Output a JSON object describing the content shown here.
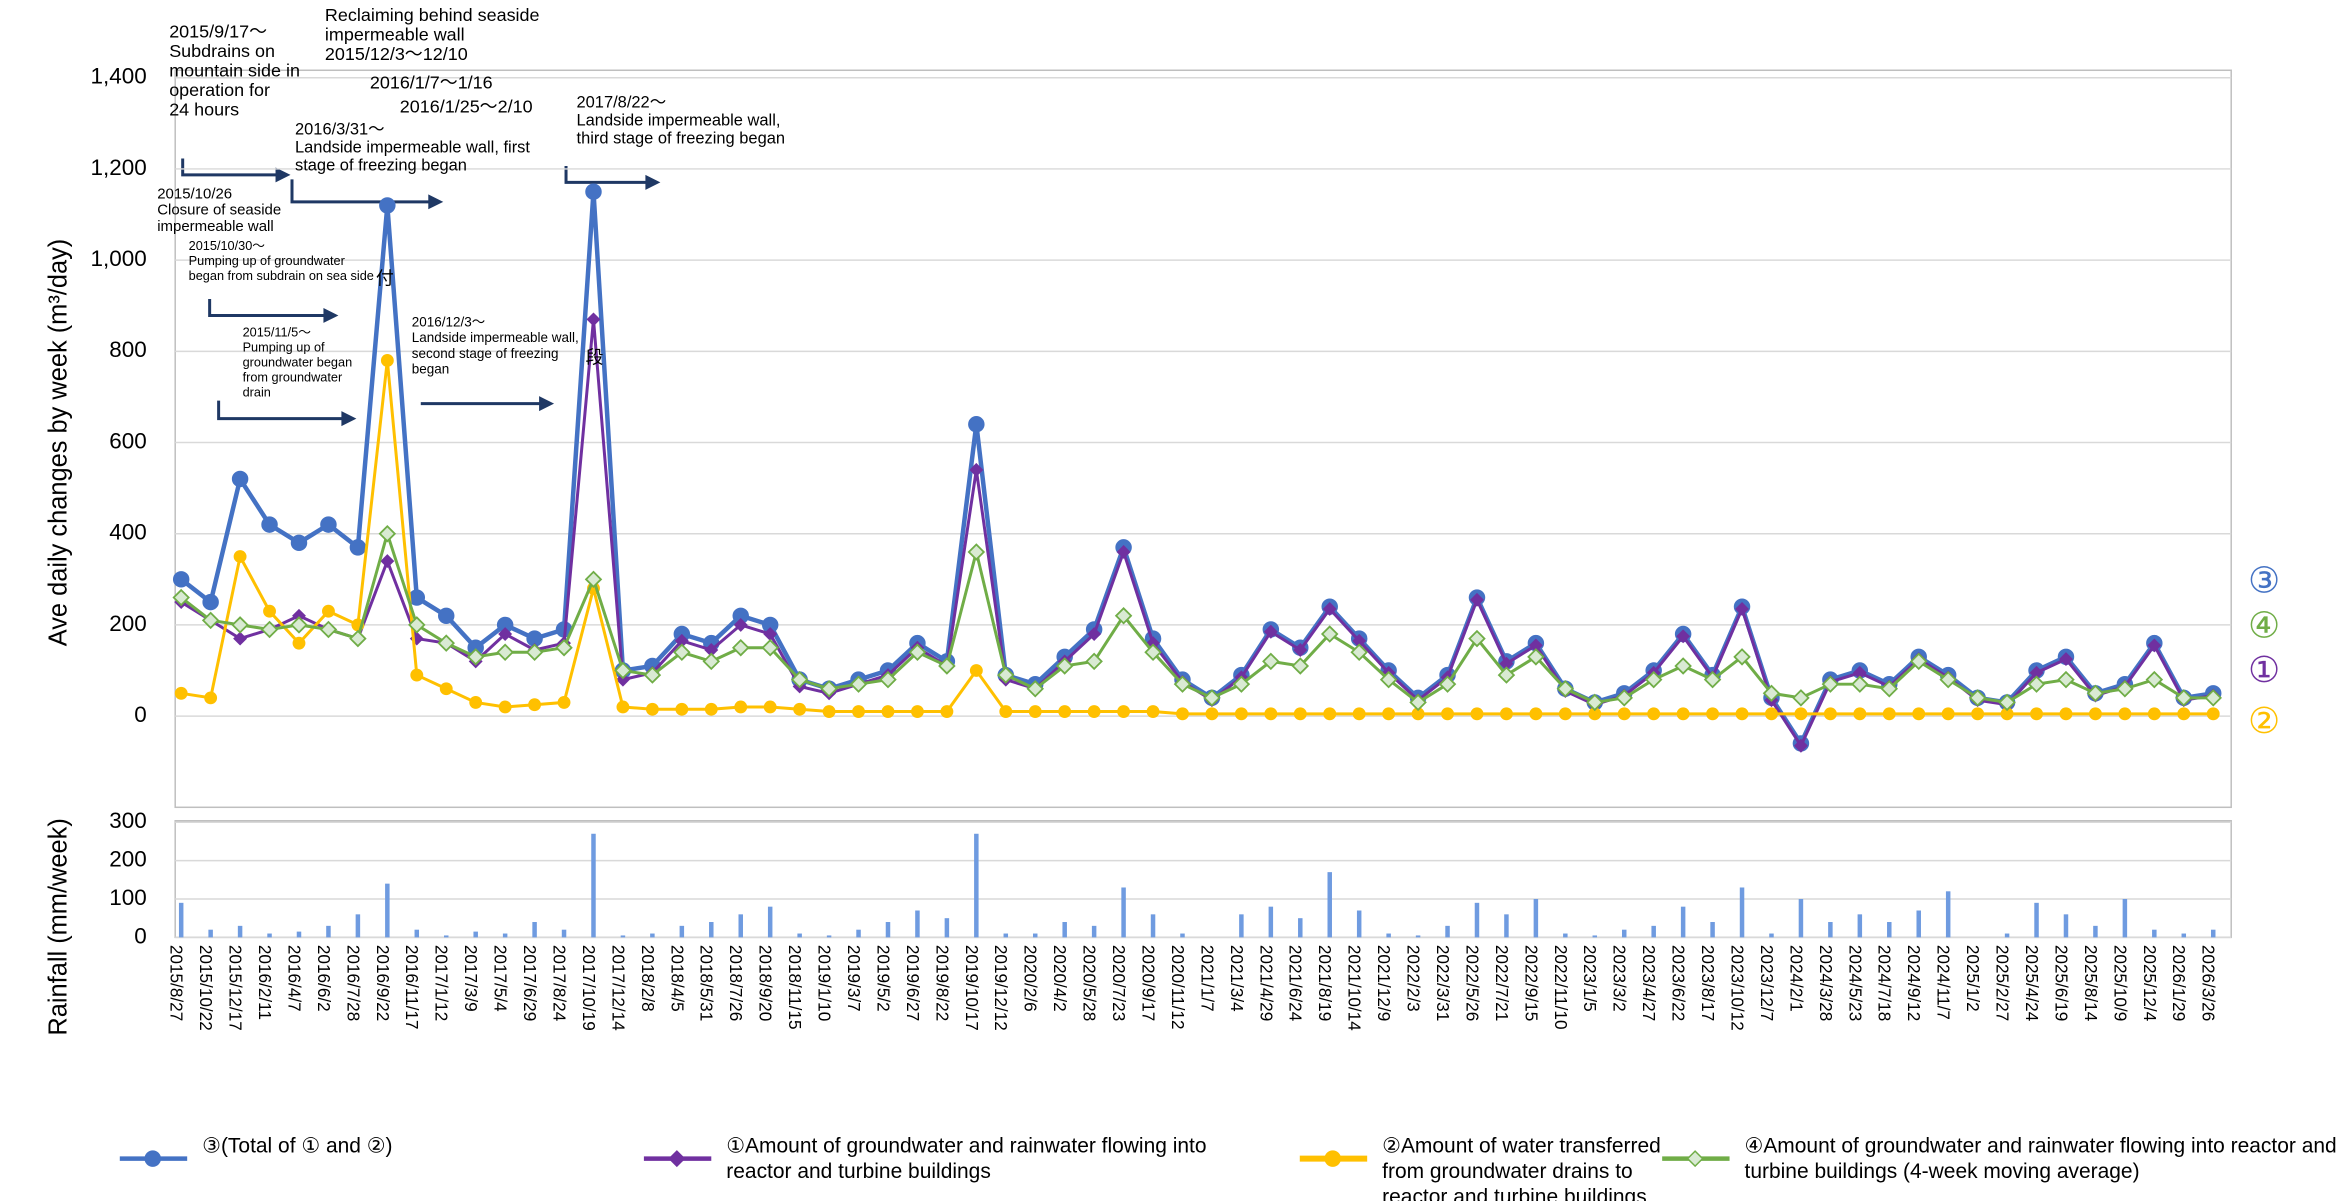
{
  "chart_data": [
    {
      "type": "line",
      "ylabel": "Ave daily changes by week (m³/day)",
      "ylim": [
        -200,
        1400
      ],
      "yticks": [
        0,
        200,
        400,
        600,
        800,
        {
          "value": 1000,
          "label": "1,000"
        },
        {
          "value": 1200,
          "label": "1,200"
        },
        {
          "value": 1400,
          "label": "1,400"
        }
      ],
      "grid": true,
      "series": [
        {
          "name": "③(Total of ① and ②)",
          "end_label": "③",
          "color": "#4472c4",
          "marker": "circle",
          "marker_fill": "#4472c4",
          "values": [
            300,
            250,
            520,
            420,
            380,
            420,
            370,
            1120,
            260,
            220,
            150,
            200,
            170,
            190,
            1150,
            100,
            110,
            180,
            160,
            220,
            200,
            80,
            60,
            80,
            100,
            160,
            120,
            640,
            90,
            70,
            130,
            190,
            370,
            170,
            80,
            40,
            90,
            190,
            150,
            240,
            170,
            100,
            40,
            90,
            260,
            120,
            160,
            60,
            30,
            50,
            100,
            180,
            90,
            240,
            40,
            -60,
            80,
            100,
            70,
            130,
            90,
            40,
            30,
            100,
            130,
            50,
            70,
            160,
            40,
            50
          ]
        },
        {
          "name": "①Amount of groundwater and rainwater flowing into reactor and turbine buildings",
          "end_label": "①",
          "color": "#7030a0",
          "marker": "diamond",
          "marker_fill": "#7030a0",
          "values": [
            250,
            210,
            170,
            190,
            220,
            190,
            170,
            340,
            170,
            160,
            120,
            180,
            145,
            160,
            870,
            80,
            95,
            165,
            145,
            200,
            180,
            65,
            50,
            70,
            90,
            150,
            110,
            540,
            80,
            60,
            120,
            180,
            360,
            160,
            75,
            35,
            85,
            185,
            145,
            235,
            165,
            95,
            35,
            85,
            255,
            115,
            155,
            55,
            25,
            45,
            95,
            175,
            85,
            235,
            35,
            -65,
            75,
            95,
            65,
            125,
            85,
            35,
            25,
            95,
            125,
            45,
            65,
            155,
            35,
            45
          ]
        },
        {
          "name": "②Amount of water transferred from groundwater drains to reactor and turbine buildings",
          "end_label": "②",
          "color": "#ffc000",
          "marker": "circle",
          "marker_fill": "#ffc000",
          "values": [
            50,
            40,
            350,
            230,
            160,
            230,
            200,
            780,
            90,
            60,
            30,
            20,
            25,
            30,
            280,
            20,
            15,
            15,
            15,
            20,
            20,
            15,
            10,
            10,
            10,
            10,
            10,
            100,
            10,
            10,
            10,
            10,
            10,
            10,
            5,
            5,
            5,
            5,
            5,
            5,
            5,
            5,
            5,
            5,
            5,
            5,
            5,
            5,
            5,
            5,
            5,
            5,
            5,
            5,
            5,
            5,
            5,
            5,
            5,
            5,
            5,
            5,
            5,
            5,
            5,
            5,
            5,
            5,
            5,
            5
          ]
        },
        {
          "name": "④Amount of groundwater and rainwater flowing into reactor and turbine buildings (4-week moving average)",
          "end_label": "④",
          "color": "#70ad47",
          "marker": "diamond",
          "marker_fill": "#d9ead3",
          "values": [
            260,
            210,
            200,
            190,
            200,
            190,
            170,
            400,
            200,
            160,
            130,
            140,
            140,
            150,
            300,
            100,
            90,
            140,
            120,
            150,
            150,
            80,
            60,
            70,
            80,
            140,
            110,
            360,
            90,
            60,
            110,
            120,
            220,
            140,
            70,
            40,
            70,
            120,
            110,
            180,
            140,
            80,
            30,
            70,
            170,
            90,
            130,
            60,
            30,
            40,
            80,
            110,
            80,
            130,
            50,
            40,
            70,
            70,
            60,
            120,
            80,
            40,
            30,
            70,
            80,
            50,
            60,
            80,
            40,
            40
          ]
        }
      ],
      "annotations": [
        [
          "2015/9/17～",
          "Subdrains on",
          "mountain side in",
          "operation for",
          "24 hours"
        ],
        [
          "Reclaiming behind seaside",
          "impermeable wall",
          "2015/12/3～12/10"
        ],
        [
          "2016/1/7～1/16"
        ],
        [
          "2016/1/25～2/10"
        ],
        [
          "2016/3/31～",
          "Landside impermeable wall, first",
          "stage of freezing began"
        ],
        [
          "2017/8/22～",
          "Landside impermeable wall,",
          "third stage of freezing began"
        ],
        [
          "2015/10/26",
          "Closure of seaside",
          "impermeable wall"
        ],
        [
          "2015/10/30～",
          "Pumping up of groundwater",
          "began from subdrain on sea side"
        ],
        [
          "2015/11/5～",
          "Pumping up of",
          "groundwater began",
          "from groundwater",
          "drain"
        ],
        [
          "2016/12/3～",
          "Landside impermeable wall,",
          "second stage of freezing",
          "began"
        ],
        [
          "付"
        ],
        [
          "段"
        ]
      ]
    },
    {
      "type": "bar",
      "ylabel": "Rainfall (mm/week)",
      "color": "#6f9be0",
      "ylim": [
        0,
        300
      ],
      "yticks": [
        0,
        100,
        200,
        300
      ],
      "grid": true,
      "categories": [
        "2015/8/27",
        "2015/10/22",
        "2015/12/17",
        "2016/2/11",
        "2016/4/7",
        "2016/6/2",
        "2016/7/28",
        "2016/9/22",
        "2016/11/17",
        "2017/1/12",
        "2017/3/9",
        "2017/5/4",
        "2017/6/29",
        "2017/8/24",
        "2017/10/19",
        "2017/12/14",
        "2018/2/8",
        "2018/4/5",
        "2018/5/31",
        "2018/7/26",
        "2018/9/20",
        "2018/11/15",
        "2019/1/10",
        "2019/3/7",
        "2019/5/2",
        "2019/6/27",
        "2019/8/22",
        "2019/10/17",
        "2019/12/12",
        "2020/2/6",
        "2020/4/2",
        "2020/5/28",
        "2020/7/23",
        "2020/9/17",
        "2020/11/12",
        "2021/1/7",
        "2021/3/4",
        "2021/4/29",
        "2021/6/24",
        "2021/8/19",
        "2021/10/14",
        "2021/12/9",
        "2022/2/3",
        "2022/3/31",
        "2022/5/26",
        "2022/7/21",
        "2022/9/15",
        "2022/11/10",
        "2023/1/5",
        "2023/3/2",
        "2023/4/27",
        "2023/6/22",
        "2023/8/17",
        "2023/10/12",
        "2023/12/7",
        "2024/2/1",
        "2024/3/28",
        "2024/5/23",
        "2024/7/18",
        "2024/9/12",
        "2024/11/7",
        "2025/1/2",
        "2025/2/27",
        "2025/4/24",
        "2025/6/19",
        "2025/8/14",
        "2025/10/9",
        "2025/12/4",
        "2026/1/29",
        "2026/3/26"
      ],
      "values": [
        90,
        20,
        30,
        10,
        15,
        30,
        60,
        140,
        20,
        5,
        15,
        10,
        40,
        20,
        270,
        5,
        10,
        30,
        40,
        60,
        80,
        10,
        5,
        20,
        40,
        70,
        50,
        270,
        10,
        10,
        40,
        30,
        130,
        60,
        10,
        0,
        60,
        80,
        50,
        170,
        70,
        10,
        5,
        30,
        90,
        60,
        100,
        10,
        5,
        20,
        30,
        80,
        40,
        130,
        10,
        100,
        40,
        60,
        40,
        70,
        120,
        0,
        10,
        90,
        60,
        30,
        100,
        20,
        10,
        20
      ]
    }
  ]
}
